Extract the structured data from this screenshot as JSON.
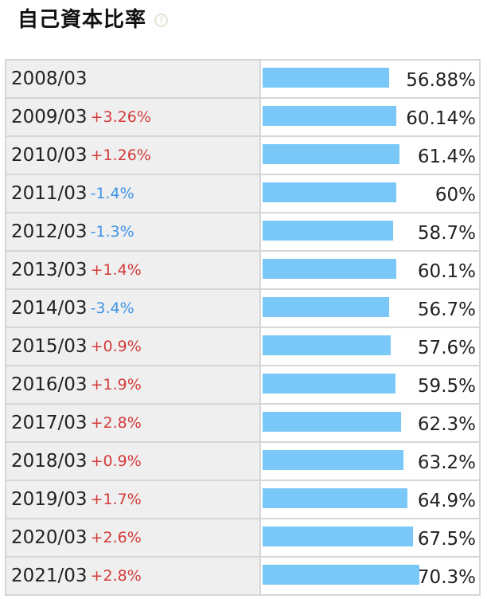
{
  "header": {
    "title": "自己資本比率",
    "help_icon": "help-question-icon"
  },
  "colors": {
    "bar": "#7ac8f8",
    "positive": "#d43b3b",
    "negative": "#3d93e6"
  },
  "chart_data": {
    "type": "bar",
    "orientation": "horizontal",
    "title": "自己資本比率",
    "xlim": [
      0,
      100
    ],
    "categories": [
      "2008/03",
      "2009/03",
      "2010/03",
      "2011/03",
      "2012/03",
      "2013/03",
      "2014/03",
      "2015/03",
      "2016/03",
      "2017/03",
      "2018/03",
      "2019/03",
      "2020/03",
      "2021/03"
    ],
    "values": [
      56.88,
      60.14,
      61.4,
      60,
      58.7,
      60.1,
      56.7,
      57.6,
      59.5,
      62.3,
      63.2,
      64.9,
      67.5,
      70.3
    ],
    "value_labels": [
      "56.88%",
      "60.14%",
      "61.4%",
      "60%",
      "58.7%",
      "60.1%",
      "56.7%",
      "57.6%",
      "59.5%",
      "62.3%",
      "63.2%",
      "64.9%",
      "67.5%",
      "70.3%"
    ],
    "changes": [
      "",
      "+3.26%",
      "+1.26%",
      "-1.4%",
      "-1.3%",
      "+1.4%",
      "-3.4%",
      "+0.9%",
      "+1.9%",
      "+2.8%",
      "+0.9%",
      "+1.7%",
      "+2.6%",
      "+2.8%"
    ]
  }
}
